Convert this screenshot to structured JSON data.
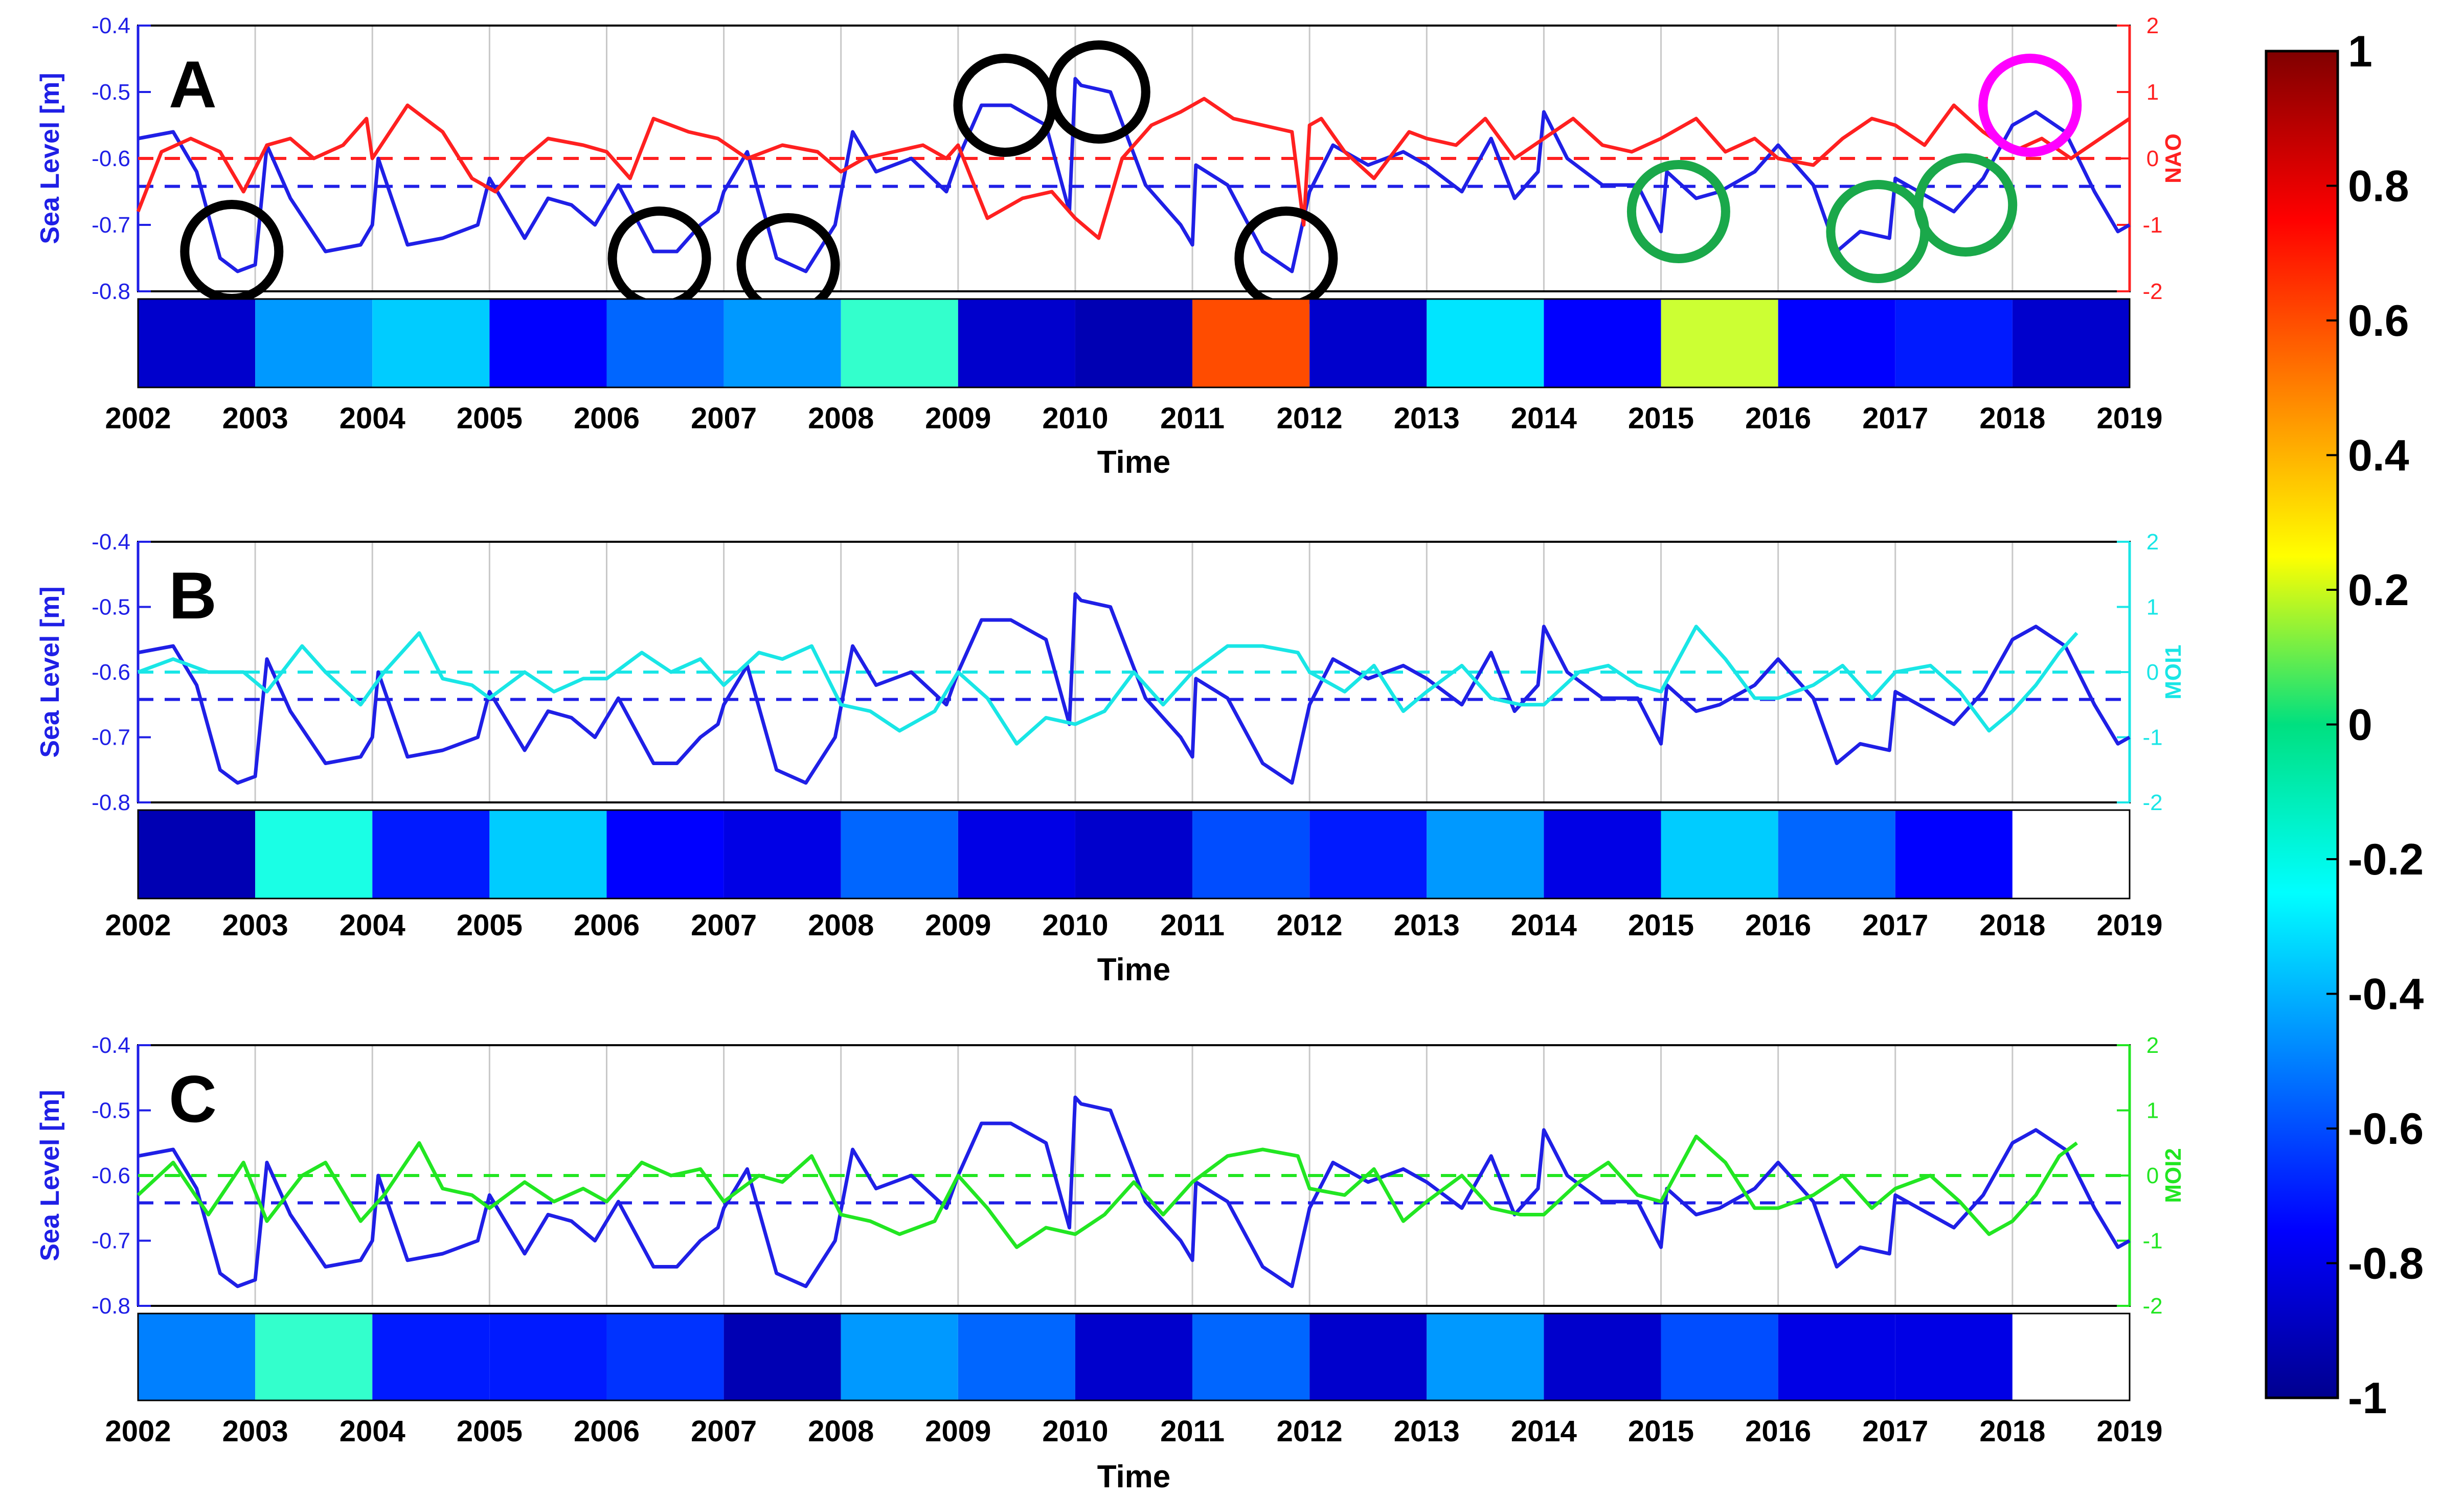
{
  "chart_data": [
    {
      "panel": "A",
      "type": "line",
      "panel_label": "A",
      "xlabel": "Time",
      "x_range": [
        2002,
        2019
      ],
      "year_ticks": [
        "2002",
        "2003",
        "2004",
        "2005",
        "2006",
        "2007",
        "2008",
        "2009",
        "2010",
        "2011",
        "2012",
        "2013",
        "2014",
        "2015",
        "2016",
        "2017",
        "2018",
        "2019"
      ],
      "left_axis": {
        "label": "Sea Level [m]",
        "range": [
          -0.8,
          -0.4
        ],
        "ticks": [
          "-0.8",
          "-0.7",
          "-0.6",
          "-0.5",
          "-0.4"
        ],
        "color": "#1f1fe6"
      },
      "right_axis": {
        "label": "NAO",
        "range": [
          -2,
          2
        ],
        "ticks": [
          "-2",
          "-1",
          "0",
          "1",
          "2"
        ],
        "color": "#ff2020"
      },
      "sea_level_mean": -0.642,
      "index_zero_line": 0,
      "series": [
        {
          "name": "Sea Level",
          "axis": "left",
          "color": "#1f1fe6",
          "x": [
            2002.0,
            2002.3,
            2002.5,
            2002.7,
            2002.85,
            2003.0,
            2003.1,
            2003.3,
            2003.6,
            2003.9,
            2004.0,
            2004.05,
            2004.3,
            2004.6,
            2004.9,
            2005.0,
            2005.3,
            2005.5,
            2005.7,
            2005.9,
            2006.1,
            2006.4,
            2006.6,
            2006.8,
            2006.95,
            2007.0,
            2007.2,
            2007.45,
            2007.7,
            2007.95,
            2008.1,
            2008.3,
            2008.6,
            2008.9,
            2009.0,
            2009.2,
            2009.45,
            2009.75,
            2009.95,
            2010.0,
            2010.05,
            2010.3,
            2010.6,
            2010.9,
            2011.0,
            2011.03,
            2011.3,
            2011.6,
            2011.85,
            2012.0,
            2012.2,
            2012.5,
            2012.8,
            2013.0,
            2013.3,
            2013.55,
            2013.75,
            2013.95,
            2014.0,
            2014.2,
            2014.5,
            2014.8,
            2015.0,
            2015.05,
            2015.3,
            2015.5,
            2015.8,
            2016.0,
            2016.3,
            2016.5,
            2016.7,
            2016.95,
            2017.0,
            2017.2,
            2017.5,
            2017.75,
            2018.0,
            2018.2,
            2018.45,
            2018.7,
            2018.9,
            2019.0
          ],
          "y": [
            -0.57,
            -0.56,
            -0.62,
            -0.75,
            -0.77,
            -0.76,
            -0.58,
            -0.66,
            -0.74,
            -0.73,
            -0.7,
            -0.6,
            -0.73,
            -0.72,
            -0.7,
            -0.63,
            -0.72,
            -0.66,
            -0.67,
            -0.7,
            -0.64,
            -0.74,
            -0.74,
            -0.7,
            -0.68,
            -0.65,
            -0.59,
            -0.75,
            -0.77,
            -0.7,
            -0.56,
            -0.62,
            -0.6,
            -0.65,
            -0.6,
            -0.52,
            -0.52,
            -0.55,
            -0.68,
            -0.48,
            -0.49,
            -0.5,
            -0.64,
            -0.7,
            -0.73,
            -0.61,
            -0.64,
            -0.74,
            -0.77,
            -0.65,
            -0.58,
            -0.61,
            -0.59,
            -0.61,
            -0.65,
            -0.57,
            -0.66,
            -0.62,
            -0.53,
            -0.6,
            -0.64,
            -0.64,
            -0.71,
            -0.62,
            -0.66,
            -0.65,
            -0.62,
            -0.58,
            -0.64,
            -0.74,
            -0.71,
            -0.72,
            -0.63,
            -0.65,
            -0.68,
            -0.63,
            -0.55,
            -0.53,
            -0.56,
            -0.65,
            -0.71,
            -0.7
          ]
        },
        {
          "name": "NAO",
          "axis": "right",
          "color": "#ff2020",
          "x": [
            2002.0,
            2002.2,
            2002.45,
            2002.7,
            2002.9,
            2003.1,
            2003.3,
            2003.5,
            2003.75,
            2003.95,
            2004.0,
            2004.3,
            2004.6,
            2004.85,
            2005.05,
            2005.3,
            2005.5,
            2005.8,
            2006.0,
            2006.2,
            2006.4,
            2006.7,
            2006.95,
            2007.2,
            2007.5,
            2007.8,
            2008.0,
            2008.2,
            2008.45,
            2008.7,
            2008.9,
            2009.0,
            2009.25,
            2009.55,
            2009.8,
            2010.0,
            2010.2,
            2010.4,
            2010.65,
            2010.9,
            2011.1,
            2011.35,
            2011.6,
            2011.85,
            2011.95,
            2012.0,
            2012.1,
            2012.3,
            2012.55,
            2012.85,
            2013.0,
            2013.25,
            2013.5,
            2013.75,
            2014.0,
            2014.25,
            2014.5,
            2014.75,
            2015.0,
            2015.3,
            2015.55,
            2015.8,
            2016.0,
            2016.3,
            2016.55,
            2016.8,
            2017.0,
            2017.25,
            2017.5,
            2017.75,
            2018.0,
            2018.25,
            2018.5,
            2018.75,
            2019.0
          ],
          "y": [
            -0.8,
            0.1,
            0.3,
            0.1,
            -0.5,
            0.2,
            0.3,
            0.0,
            0.2,
            0.6,
            0.0,
            0.8,
            0.4,
            -0.3,
            -0.5,
            0.0,
            0.3,
            0.2,
            0.1,
            -0.3,
            0.6,
            0.4,
            0.3,
            0.0,
            0.2,
            0.1,
            -0.2,
            0.0,
            0.1,
            0.2,
            0.0,
            0.2,
            -0.9,
            -0.6,
            -0.5,
            -0.9,
            -1.2,
            0.0,
            0.5,
            0.7,
            0.9,
            0.6,
            0.5,
            0.4,
            -1.0,
            0.5,
            0.6,
            0.1,
            -0.3,
            0.4,
            0.3,
            0.2,
            0.6,
            0.0,
            0.3,
            0.6,
            0.2,
            0.1,
            0.3,
            0.6,
            0.1,
            0.3,
            0.0,
            -0.1,
            0.3,
            0.6,
            0.5,
            0.2,
            0.8,
            0.4,
            0.1,
            0.3,
            0.0,
            0.3,
            0.6
          ]
        }
      ],
      "correlation_bar": {
        "years": [
          2002,
          2003,
          2004,
          2005,
          2006,
          2007,
          2008,
          2009,
          2010,
          2011,
          2012,
          2013,
          2014,
          2015,
          2016,
          2017,
          2018
        ],
        "values": [
          -0.85,
          -0.45,
          -0.35,
          -0.75,
          -0.55,
          -0.45,
          -0.15,
          -0.85,
          -0.9,
          0.6,
          -0.85,
          -0.3,
          -0.75,
          0.15,
          -0.75,
          -0.7,
          -0.85
        ]
      },
      "annotations": [
        {
          "type": "circle",
          "color": "black",
          "x": 2002.8,
          "y": -0.74
        },
        {
          "type": "circle",
          "color": "black",
          "x": 2006.45,
          "y": -0.75
        },
        {
          "type": "circle",
          "color": "black",
          "x": 2007.55,
          "y": -0.76
        },
        {
          "type": "circle",
          "color": "black",
          "x": 2009.4,
          "y": -0.52
        },
        {
          "type": "circle",
          "color": "black",
          "x": 2010.2,
          "y": -0.5
        },
        {
          "type": "circle",
          "color": "black",
          "x": 2011.8,
          "y": -0.75
        },
        {
          "type": "circle",
          "color": "green",
          "x": 2015.15,
          "y": -0.68
        },
        {
          "type": "circle",
          "color": "green",
          "x": 2016.85,
          "y": -0.71
        },
        {
          "type": "circle",
          "color": "green",
          "x": 2017.6,
          "y": -0.67
        },
        {
          "type": "circle",
          "color": "magenta",
          "x": 2018.15,
          "y": -0.52
        }
      ]
    },
    {
      "panel": "B",
      "type": "line",
      "panel_label": "B",
      "xlabel": "Time",
      "x_range": [
        2002,
        2019
      ],
      "year_ticks": [
        "2002",
        "2003",
        "2004",
        "2005",
        "2006",
        "2007",
        "2008",
        "2009",
        "2010",
        "2011",
        "2012",
        "2013",
        "2014",
        "2015",
        "2016",
        "2017",
        "2018",
        "2019"
      ],
      "left_axis": {
        "label": "Sea Level [m]",
        "range": [
          -0.8,
          -0.4
        ],
        "ticks": [
          "-0.8",
          "-0.7",
          "-0.6",
          "-0.5",
          "-0.4"
        ],
        "color": "#1f1fe6"
      },
      "right_axis": {
        "label": "MOI1",
        "range": [
          -2,
          2
        ],
        "ticks": [
          "-2",
          "-1",
          "0",
          "1",
          "2"
        ],
        "color": "#19e6e6"
      },
      "sea_level_mean": -0.642,
      "index_zero_line": 0,
      "series": [
        {
          "name": "Sea Level",
          "axis": "left",
          "color": "#1f1fe6",
          "same_as_panel": "A"
        },
        {
          "name": "MOI1",
          "axis": "right",
          "color": "#19e6e6",
          "x": [
            2002.0,
            2002.3,
            2002.6,
            2002.9,
            2003.1,
            2003.4,
            2003.6,
            2003.9,
            2004.1,
            2004.4,
            2004.6,
            2004.85,
            2005.0,
            2005.3,
            2005.55,
            2005.8,
            2006.0,
            2006.3,
            2006.55,
            2006.8,
            2007.0,
            2007.3,
            2007.5,
            2007.75,
            2008.0,
            2008.25,
            2008.5,
            2008.8,
            2009.0,
            2009.25,
            2009.5,
            2009.75,
            2010.0,
            2010.25,
            2010.5,
            2010.75,
            2011.0,
            2011.3,
            2011.6,
            2011.9,
            2012.0,
            2012.3,
            2012.55,
            2012.8,
            2013.0,
            2013.3,
            2013.55,
            2013.8,
            2014.0,
            2014.3,
            2014.55,
            2014.8,
            2015.0,
            2015.3,
            2015.55,
            2015.8,
            2016.0,
            2016.3,
            2016.55,
            2016.8,
            2017.0,
            2017.3,
            2017.55,
            2017.8,
            2018.0,
            2018.2,
            2018.4,
            2018.55
          ],
          "y": [
            0.0,
            0.2,
            0.0,
            0.0,
            -0.3,
            0.4,
            0.0,
            -0.5,
            0.0,
            0.6,
            -0.1,
            -0.2,
            -0.4,
            0.0,
            -0.3,
            -0.1,
            -0.1,
            0.3,
            0.0,
            0.2,
            -0.2,
            0.3,
            0.2,
            0.4,
            -0.5,
            -0.6,
            -0.9,
            -0.6,
            0.0,
            -0.4,
            -1.1,
            -0.7,
            -0.8,
            -0.6,
            0.0,
            -0.5,
            0.0,
            0.4,
            0.4,
            0.3,
            0.0,
            -0.3,
            0.1,
            -0.6,
            -0.3,
            0.1,
            -0.4,
            -0.5,
            -0.5,
            0.0,
            0.1,
            -0.2,
            -0.3,
            0.7,
            0.2,
            -0.4,
            -0.4,
            -0.2,
            0.1,
            -0.4,
            0.0,
            0.1,
            -0.3,
            -0.9,
            -0.6,
            -0.2,
            0.3,
            0.6
          ]
        }
      ],
      "correlation_bar": {
        "years": [
          2002,
          2003,
          2004,
          2005,
          2006,
          2007,
          2008,
          2009,
          2010,
          2011,
          2012,
          2013,
          2014,
          2015,
          2016,
          2017,
          2018
        ],
        "values": [
          -0.9,
          -0.2,
          -0.7,
          -0.35,
          -0.75,
          -0.8,
          -0.55,
          -0.8,
          -0.85,
          -0.6,
          -0.7,
          -0.45,
          -0.8,
          -0.35,
          -0.55,
          -0.75,
          null
        ]
      }
    },
    {
      "panel": "C",
      "type": "line",
      "panel_label": "C",
      "xlabel": "Time",
      "x_range": [
        2002,
        2019
      ],
      "year_ticks": [
        "2002",
        "2003",
        "2004",
        "2005",
        "2006",
        "2007",
        "2008",
        "2009",
        "2010",
        "2011",
        "2012",
        "2013",
        "2014",
        "2015",
        "2016",
        "2017",
        "2018",
        "2019"
      ],
      "left_axis": {
        "label": "Sea Level [m]",
        "range": [
          -0.8,
          -0.4
        ],
        "ticks": [
          "-0.8",
          "-0.7",
          "-0.6",
          "-0.5",
          "-0.4"
        ],
        "color": "#1f1fe6"
      },
      "right_axis": {
        "label": "MOI2",
        "range": [
          -2,
          2
        ],
        "ticks": [
          "-2",
          "-1",
          "0",
          "1",
          "2"
        ],
        "color": "#22e622"
      },
      "sea_level_mean": -0.642,
      "index_zero_line": 0,
      "series": [
        {
          "name": "Sea Level",
          "axis": "left",
          "color": "#1f1fe6",
          "same_as_panel": "A"
        },
        {
          "name": "MOI2",
          "axis": "right",
          "color": "#22e622",
          "x": [
            2002.0,
            2002.3,
            2002.6,
            2002.9,
            2003.1,
            2003.4,
            2003.6,
            2003.9,
            2004.1,
            2004.4,
            2004.6,
            2004.85,
            2005.0,
            2005.3,
            2005.55,
            2005.8,
            2006.0,
            2006.3,
            2006.55,
            2006.8,
            2007.0,
            2007.3,
            2007.5,
            2007.75,
            2008.0,
            2008.25,
            2008.5,
            2008.8,
            2009.0,
            2009.25,
            2009.5,
            2009.75,
            2010.0,
            2010.25,
            2010.5,
            2010.75,
            2011.0,
            2011.3,
            2011.6,
            2011.9,
            2012.0,
            2012.3,
            2012.55,
            2012.8,
            2013.0,
            2013.3,
            2013.55,
            2013.8,
            2014.0,
            2014.3,
            2014.55,
            2014.8,
            2015.0,
            2015.3,
            2015.55,
            2015.8,
            2016.0,
            2016.3,
            2016.55,
            2016.8,
            2017.0,
            2017.3,
            2017.55,
            2017.8,
            2018.0,
            2018.2,
            2018.4,
            2018.55
          ],
          "y": [
            -0.3,
            0.2,
            -0.6,
            0.2,
            -0.7,
            0.0,
            0.2,
            -0.7,
            -0.3,
            0.5,
            -0.2,
            -0.3,
            -0.5,
            -0.1,
            -0.4,
            -0.2,
            -0.4,
            0.2,
            0.0,
            0.1,
            -0.4,
            0.0,
            -0.1,
            0.3,
            -0.6,
            -0.7,
            -0.9,
            -0.7,
            0.0,
            -0.5,
            -1.1,
            -0.8,
            -0.9,
            -0.6,
            -0.1,
            -0.6,
            -0.1,
            0.3,
            0.4,
            0.3,
            -0.2,
            -0.3,
            0.1,
            -0.7,
            -0.4,
            0.0,
            -0.5,
            -0.6,
            -0.6,
            -0.1,
            0.2,
            -0.3,
            -0.4,
            0.6,
            0.2,
            -0.5,
            -0.5,
            -0.3,
            0.0,
            -0.5,
            -0.2,
            0.0,
            -0.4,
            -0.9,
            -0.7,
            -0.3,
            0.3,
            0.5
          ]
        }
      ],
      "correlation_bar": {
        "years": [
          2002,
          2003,
          2004,
          2005,
          2006,
          2007,
          2008,
          2009,
          2010,
          2011,
          2012,
          2013,
          2014,
          2015,
          2016,
          2017,
          2018
        ],
        "values": [
          -0.5,
          -0.15,
          -0.7,
          -0.7,
          -0.65,
          -0.9,
          -0.45,
          -0.55,
          -0.85,
          -0.55,
          -0.85,
          -0.45,
          -0.85,
          -0.6,
          -0.8,
          -0.8,
          null
        ]
      }
    }
  ],
  "colorbar": {
    "type": "colorbar",
    "colormap": "jet",
    "range": [
      -1,
      1
    ],
    "ticks": [
      "1",
      "0.8",
      "0.6",
      "0.4",
      "0.2",
      "0",
      "-0.2",
      "-0.4",
      "-0.6",
      "-0.8",
      "-1"
    ]
  }
}
